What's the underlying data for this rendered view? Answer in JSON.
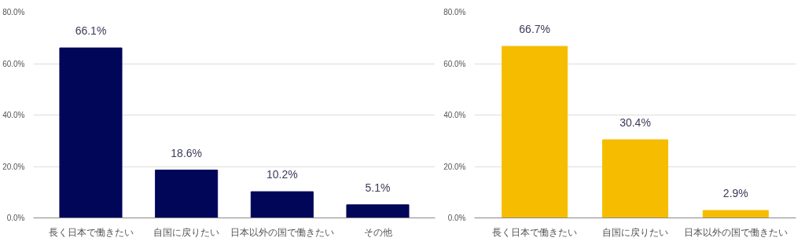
{
  "chart_data": [
    {
      "type": "bar",
      "categories": [
        "長く日本で働きたい",
        "自国に戻りたい",
        "日本以外の国で働きたい",
        "その他"
      ],
      "series": [
        {
          "color": "#020659",
          "values": [
            66.1,
            18.6,
            10.2,
            5.1
          ],
          "value_labels": [
            "66.1%",
            "18.6%",
            "10.2%",
            "5.1%"
          ]
        }
      ],
      "ylim": [
        0,
        80
      ],
      "yticks": [
        {
          "value": 0,
          "label": "0.0%"
        },
        {
          "value": 20,
          "label": "20.0%"
        },
        {
          "value": 40,
          "label": "40.0%"
        },
        {
          "value": 60,
          "label": "60.0%"
        },
        {
          "value": 80,
          "label": "80.0%"
        }
      ],
      "grid": "y"
    },
    {
      "type": "bar",
      "categories": [
        "長く日本で働きたい",
        "自国に戻りたい",
        "日本以外の国で働きたい"
      ],
      "series": [
        {
          "color": "#f6bd00",
          "values": [
            66.7,
            30.4,
            2.9
          ],
          "value_labels": [
            "66.7%",
            "30.4%",
            "2.9%"
          ]
        }
      ],
      "ylim": [
        0,
        80
      ],
      "yticks": [
        {
          "value": 0,
          "label": "0.0%"
        },
        {
          "value": 20,
          "label": "20.0%"
        },
        {
          "value": 40,
          "label": "40.0%"
        },
        {
          "value": 60,
          "label": "60.0%"
        },
        {
          "value": 80,
          "label": "80.0%"
        }
      ],
      "grid": "y"
    }
  ]
}
